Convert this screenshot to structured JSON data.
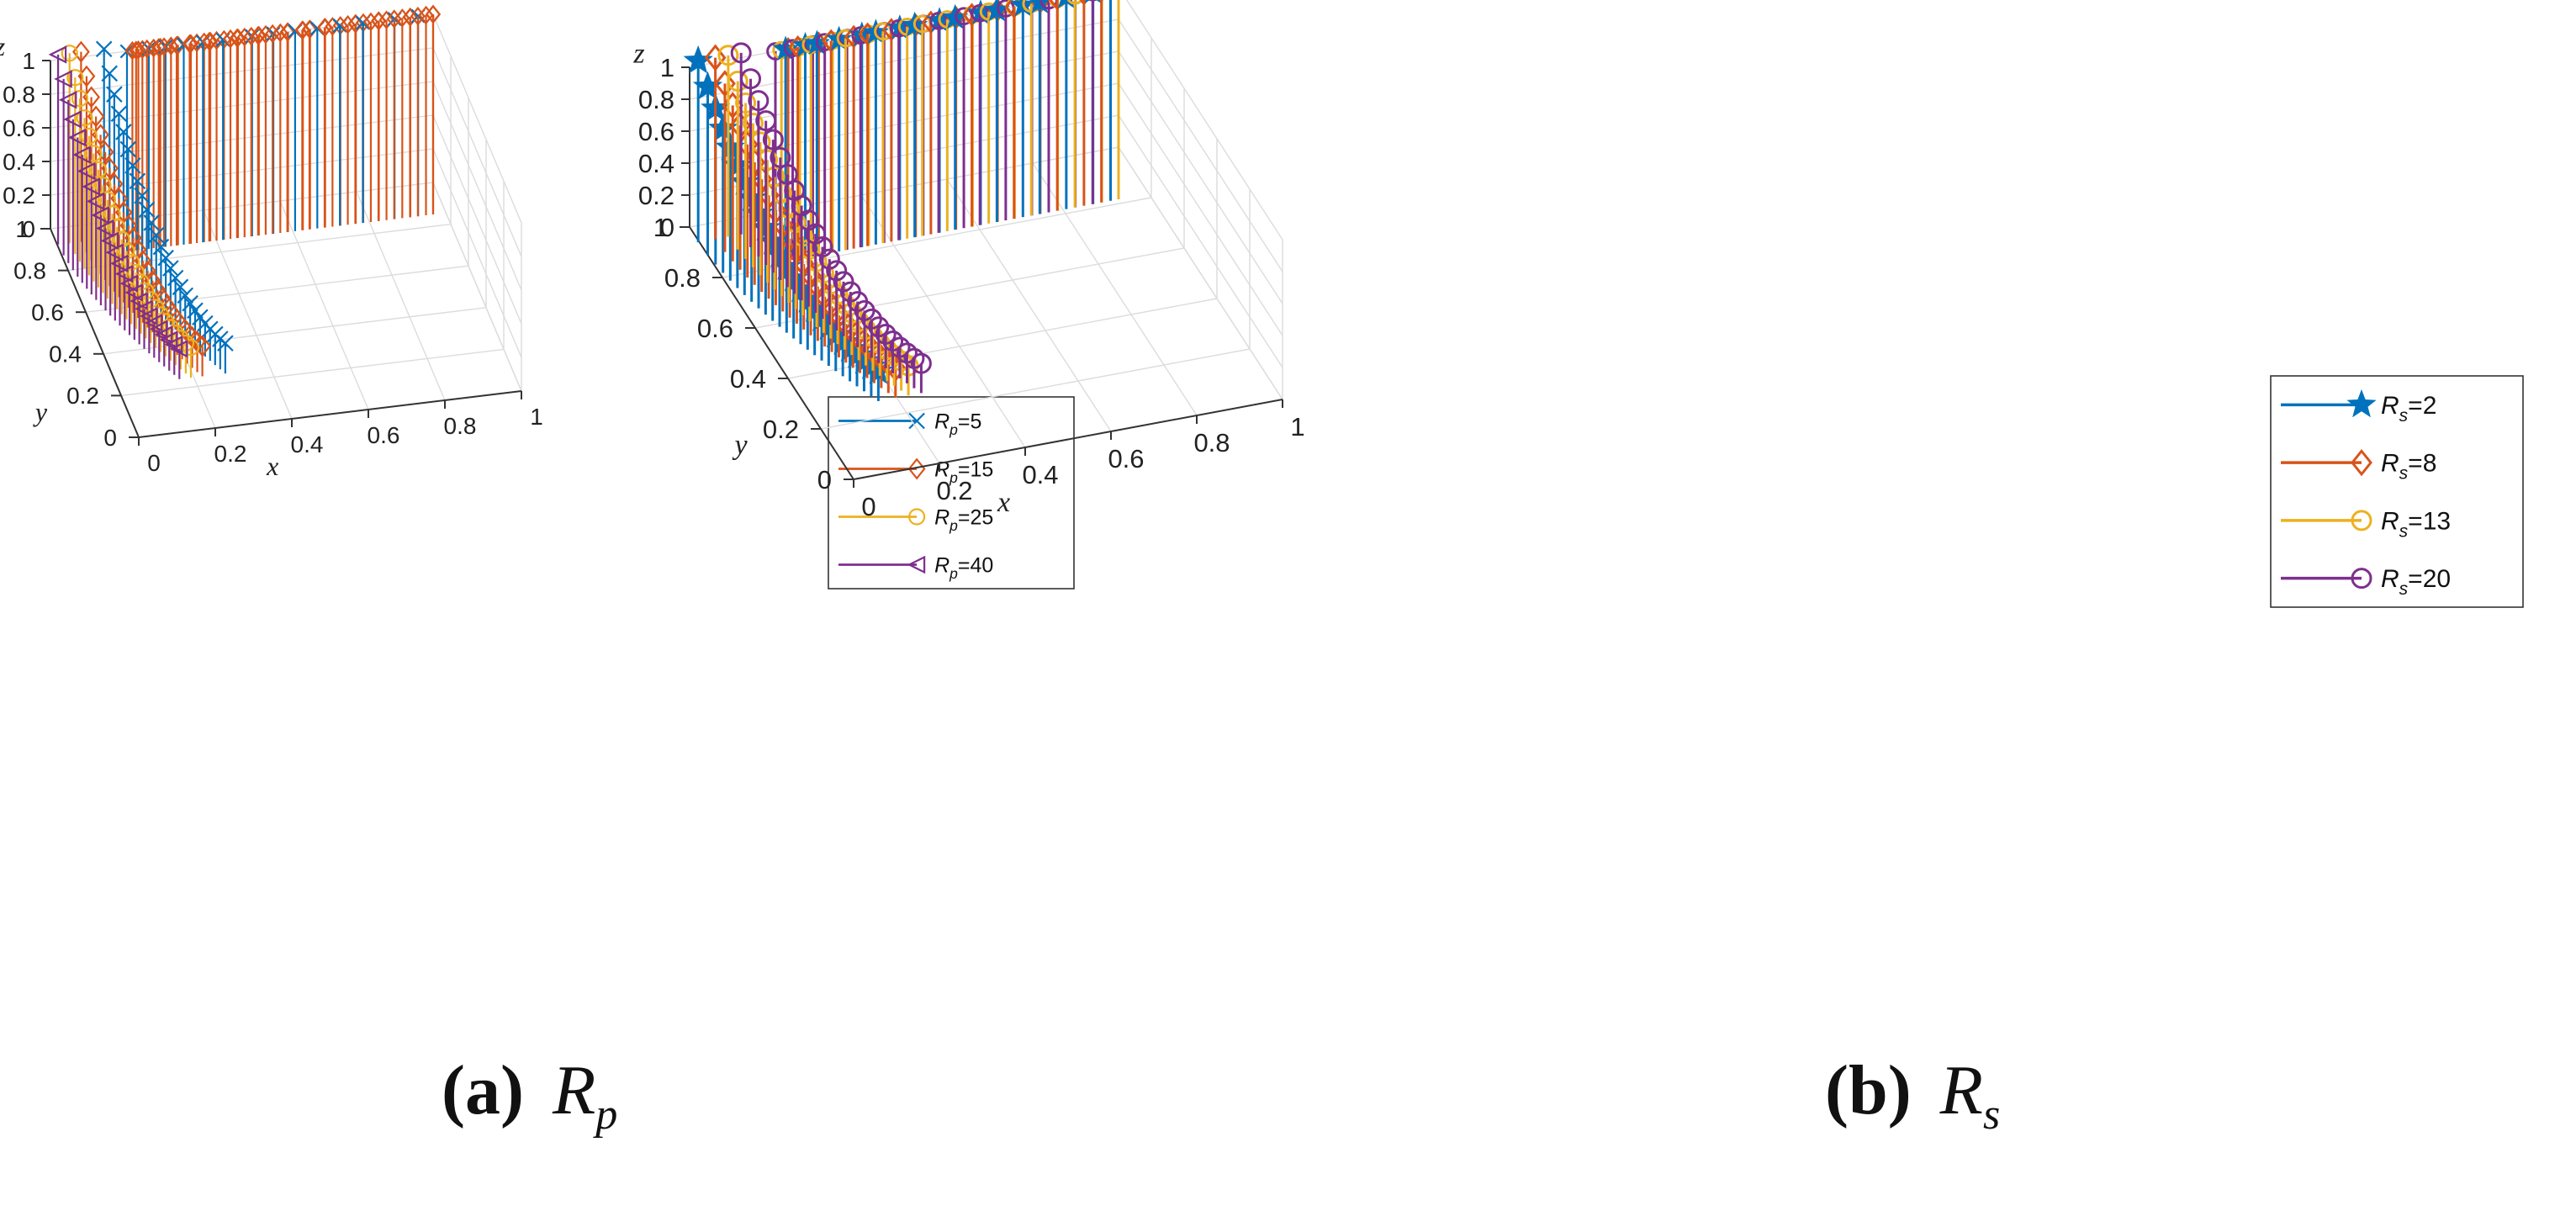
{
  "charts": [
    {
      "id": "a",
      "caption": {
        "tag": "(a)",
        "symbol": "R",
        "subscript": "p"
      },
      "chart_data": {
        "type": "stem3",
        "xlabel": "x",
        "ylabel": "y",
        "zlabel": "z",
        "xlim": [
          0,
          1
        ],
        "ylim": [
          0,
          1
        ],
        "zlim": [
          0,
          1
        ],
        "xticks": [
          "0",
          "0.2",
          "0.4",
          "0.6",
          "0.8",
          "1"
        ],
        "yticks": [
          "0",
          "0.2",
          "0.4",
          "0.6",
          "0.8",
          "1"
        ],
        "zticks": [
          "0",
          "0.2",
          "0.4",
          "0.6",
          "0.8",
          "1"
        ],
        "legend_position": "right",
        "series": [
          {
            "name": "R_p=5",
            "label_main": "R",
            "label_sub": "p",
            "label_rest": "=5",
            "marker": "x",
            "color": "#0072BD",
            "curve_offset": 0.12
          },
          {
            "name": "R_p=15",
            "label_main": "R",
            "label_sub": "p",
            "label_rest": "=15",
            "marker": "diamond",
            "color": "#D95319",
            "curve_offset": 0.06
          },
          {
            "name": "R_p=25",
            "label_main": "R",
            "label_sub": "p",
            "label_rest": "=25",
            "marker": "circle",
            "color": "#EDB120",
            "curve_offset": 0.03
          },
          {
            "name": "R_p=40",
            "label_main": "R",
            "label_sub": "p",
            "label_rest": "=40",
            "marker": "triangle-left",
            "color": "#7E2F8E",
            "curve_offset": 0.0
          }
        ]
      }
    },
    {
      "id": "b",
      "caption": {
        "tag": "(b)",
        "symbol": "R",
        "subscript": "s"
      },
      "chart_data": {
        "type": "stem3",
        "xlabel": "x",
        "ylabel": "y",
        "zlabel": "z",
        "xlim": [
          0,
          1
        ],
        "ylim": [
          0,
          1
        ],
        "zlim": [
          0,
          1
        ],
        "xticks": [
          "0",
          "0.2",
          "0.4",
          "0.6",
          "0.8",
          "1"
        ],
        "yticks": [
          "0",
          "0.2",
          "0.4",
          "0.6",
          "0.8",
          "1"
        ],
        "zticks": [
          "0",
          "0.2",
          "0.4",
          "0.6",
          "0.8",
          "1"
        ],
        "legend_position": "right",
        "series": [
          {
            "name": "R_s=2",
            "label_main": "R",
            "label_sub": "s",
            "label_rest": "=2",
            "marker": "star",
            "color": "#0072BD",
            "curve_offset": 0.0
          },
          {
            "name": "R_s=8",
            "label_main": "R",
            "label_sub": "s",
            "label_rest": "=8",
            "marker": "diamond",
            "color": "#D95319",
            "curve_offset": 0.04
          },
          {
            "name": "R_s=13",
            "label_main": "R",
            "label_sub": "s",
            "label_rest": "=13",
            "marker": "circle",
            "color": "#EDB120",
            "curve_offset": 0.07
          },
          {
            "name": "R_s=20",
            "label_main": "R",
            "label_sub": "s",
            "label_rest": "=20",
            "marker": "circle",
            "color": "#7E2F8E",
            "curve_offset": 0.1
          }
        ]
      }
    }
  ]
}
